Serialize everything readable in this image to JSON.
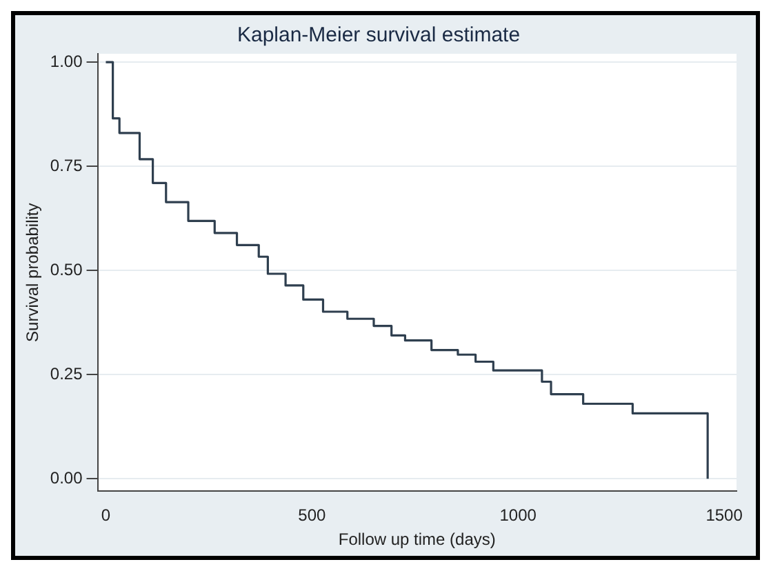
{
  "chart_data": {
    "type": "step",
    "title": "Kaplan-Meier survival estimate",
    "xlabel": "Follow up time (days)",
    "ylabel": "Survival probability",
    "x": [
      0,
      17,
      33,
      82,
      114,
      146,
      200,
      264,
      318,
      371,
      393,
      436,
      479,
      527,
      586,
      650,
      693,
      726,
      790,
      854,
      897,
      940,
      1042,
      1058,
      1080,
      1158,
      1278,
      1460,
      1460
    ],
    "series": [
      {
        "color": "#2f3f4f",
        "values": [
          1.0,
          0.865,
          0.83,
          0.767,
          0.71,
          0.664,
          0.619,
          0.59,
          0.561,
          0.533,
          0.492,
          0.464,
          0.43,
          0.401,
          0.384,
          0.367,
          0.344,
          0.332,
          0.309,
          0.298,
          0.281,
          0.26,
          0.26,
          0.233,
          0.203,
          0.18,
          0.157,
          0.157,
          0
        ]
      }
    ],
    "xlim": [
      -20,
      1530
    ],
    "xticks": [
      0,
      500,
      1000,
      1500
    ],
    "ylim": [
      -0.03,
      1.02
    ],
    "yticks": [
      {
        "value": 0,
        "label": "0.00"
      },
      {
        "value": 0.25,
        "label": "0.25"
      },
      {
        "value": 0.5,
        "label": "0.50"
      },
      {
        "value": 0.75,
        "label": "0.75"
      },
      {
        "value": 1,
        "label": "1.00"
      }
    ],
    "grid": "y",
    "legend": false,
    "marker": "none",
    "line_style": "solid"
  }
}
